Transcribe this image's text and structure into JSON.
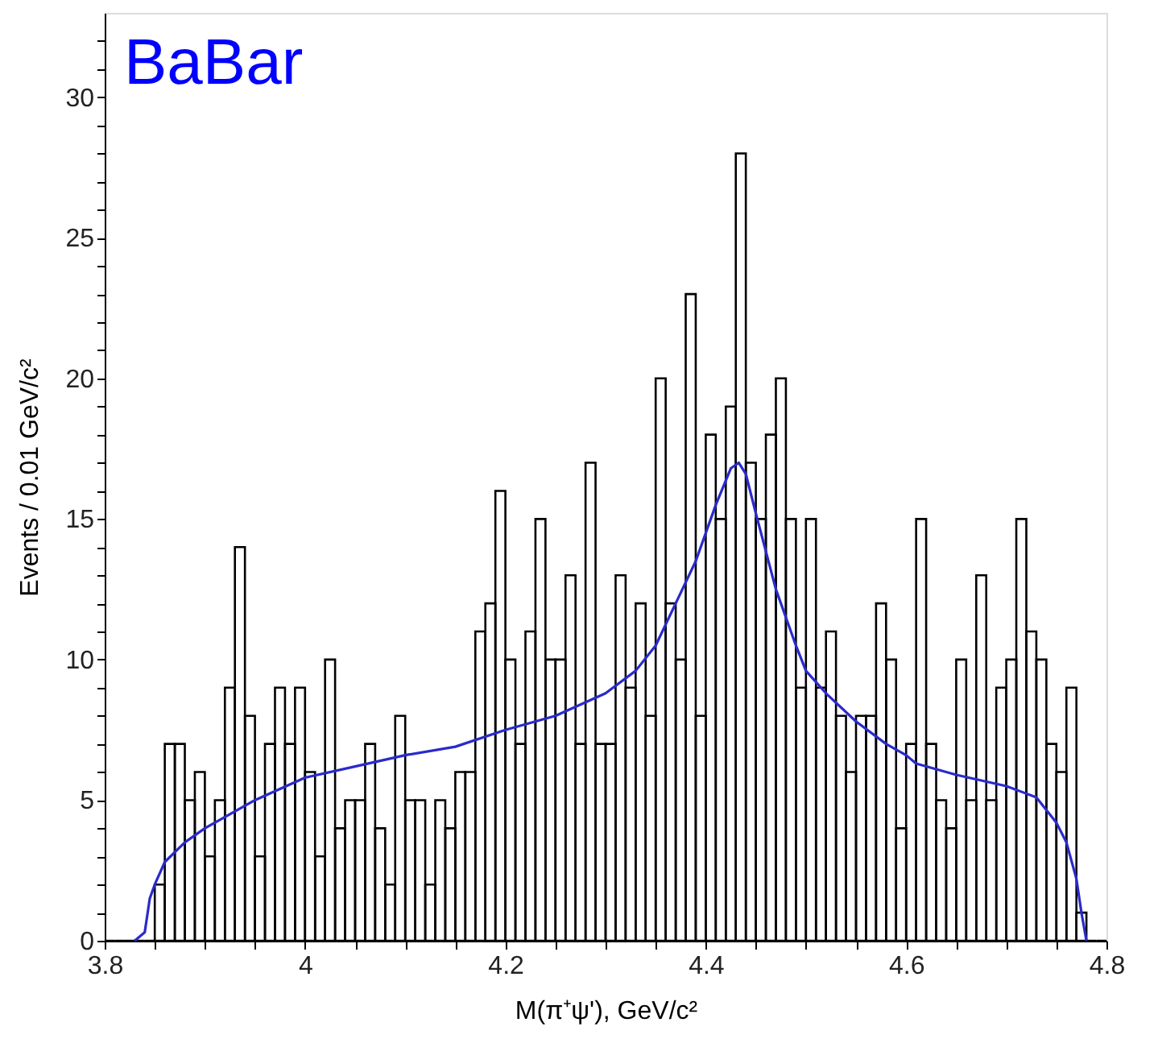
{
  "chart_data": {
    "type": "histogram",
    "xlabel": "M(π⁺ψ'), GeV/c²",
    "ylabel": "Events / 0.01 GeV/c²",
    "annotations": [
      "BaBar"
    ],
    "xlim": [
      3.8,
      4.8
    ],
    "ylim": [
      0,
      33
    ],
    "xticks": [
      3.8,
      {
        "value": 3.85,
        "label": null
      },
      {
        "value": 3.9,
        "label": null
      },
      {
        "value": 3.95,
        "label": null
      },
      4,
      {
        "value": 4.05,
        "label": null
      },
      {
        "value": 4.1,
        "label": null
      },
      {
        "value": 4.15,
        "label": null
      },
      4.2,
      {
        "value": 4.25,
        "label": null
      },
      {
        "value": 4.3,
        "label": null
      },
      {
        "value": 4.35,
        "label": null
      },
      4.4,
      {
        "value": 4.45,
        "label": null
      },
      {
        "value": 4.5,
        "label": null
      },
      {
        "value": 4.55,
        "label": null
      },
      4.6,
      {
        "value": 4.65,
        "label": null
      },
      {
        "value": 4.7,
        "label": null
      },
      {
        "value": 4.75,
        "label": null
      },
      4.8
    ],
    "yticks": [
      0,
      {
        "value": 1,
        "label": null
      },
      {
        "value": 2,
        "label": null
      },
      {
        "value": 3,
        "label": null
      },
      {
        "value": 4,
        "label": null
      },
      5,
      {
        "value": 6,
        "label": null
      },
      {
        "value": 7,
        "label": null
      },
      {
        "value": 8,
        "label": null
      },
      {
        "value": 9,
        "label": null
      },
      10,
      {
        "value": 11,
        "label": null
      },
      {
        "value": 12,
        "label": null
      },
      {
        "value": 13,
        "label": null
      },
      {
        "value": 14,
        "label": null
      },
      15,
      {
        "value": 16,
        "label": null
      },
      {
        "value": 17,
        "label": null
      },
      {
        "value": 18,
        "label": null
      },
      {
        "value": 19,
        "label": null
      },
      20,
      {
        "value": 21,
        "label": null
      },
      {
        "value": 22,
        "label": null
      },
      {
        "value": 23,
        "label": null
      },
      {
        "value": 24,
        "label": null
      },
      25,
      {
        "value": 26,
        "label": null
      },
      {
        "value": 27,
        "label": null
      },
      {
        "value": 28,
        "label": null
      },
      {
        "value": 29,
        "label": null
      },
      30,
      {
        "value": 31,
        "label": null
      },
      {
        "value": 32,
        "label": null
      }
    ],
    "grid": false,
    "series": [
      {
        "type": "histogram",
        "color": "#000000",
        "bins": [
          3.8,
          3.81,
          3.82,
          3.83,
          3.84,
          3.85,
          3.86,
          3.87,
          3.88,
          3.89,
          3.9,
          3.91,
          3.92,
          3.93,
          3.94,
          3.95,
          3.96,
          3.97,
          3.98,
          3.99,
          4.0,
          4.01,
          4.02,
          4.03,
          4.04,
          4.05,
          4.06,
          4.07,
          4.08,
          4.09,
          4.1,
          4.11,
          4.12,
          4.13,
          4.14,
          4.15,
          4.16,
          4.17,
          4.18,
          4.19,
          4.2,
          4.21,
          4.22,
          4.23,
          4.24,
          4.25,
          4.26,
          4.27,
          4.28,
          4.29,
          4.3,
          4.31,
          4.32,
          4.33,
          4.34,
          4.35,
          4.36,
          4.37,
          4.38,
          4.39,
          4.4,
          4.41,
          4.42,
          4.43,
          4.44,
          4.45,
          4.46,
          4.47,
          4.48,
          4.49,
          4.5,
          4.51,
          4.52,
          4.53,
          4.54,
          4.55,
          4.56,
          4.57,
          4.58,
          4.59,
          4.6,
          4.61,
          4.62,
          4.63,
          4.64,
          4.65,
          4.66,
          4.67,
          4.68,
          4.69,
          4.7,
          4.71,
          4.72,
          4.73,
          4.74,
          4.75,
          4.76,
          4.77,
          4.78,
          4.79,
          4.8
        ],
        "values": [
          0,
          0,
          0,
          0,
          0,
          2,
          7,
          7,
          5,
          6,
          3,
          5,
          9,
          14,
          8,
          3,
          7,
          9,
          7,
          9,
          6,
          3,
          10,
          4,
          5,
          5,
          7,
          4,
          2,
          8,
          5,
          5,
          2,
          5,
          4,
          6,
          6,
          11,
          12,
          16,
          10,
          7,
          11,
          15,
          10,
          10,
          13,
          7,
          17,
          7,
          7,
          13,
          9,
          12,
          8,
          20,
          12,
          10,
          23,
          8,
          18,
          15,
          19,
          28,
          17,
          15,
          18,
          20,
          15,
          9,
          15,
          9,
          11,
          8,
          6,
          8,
          8,
          12,
          10,
          4,
          7,
          15,
          7,
          5,
          4,
          10,
          5,
          13,
          5,
          9,
          10,
          15,
          11,
          10,
          7,
          6,
          9,
          1,
          0,
          0
        ]
      },
      {
        "type": "line",
        "color": "#2a2acc",
        "x": [
          3.83,
          3.84,
          3.845,
          3.85,
          3.86,
          3.88,
          3.9,
          3.95,
          4.0,
          4.05,
          4.1,
          4.15,
          4.2,
          4.25,
          4.3,
          4.33,
          4.35,
          4.37,
          4.39,
          4.41,
          4.425,
          4.433,
          4.44,
          4.45,
          4.47,
          4.49,
          4.5,
          4.52,
          4.55,
          4.58,
          4.6,
          4.61,
          4.65,
          4.7,
          4.73,
          4.75,
          4.76,
          4.77,
          4.775,
          4.78
        ],
        "values": [
          0,
          0.3,
          1.5,
          2,
          2.8,
          3.5,
          4.0,
          5.0,
          5.8,
          6.2,
          6.6,
          6.9,
          7.5,
          8.0,
          8.8,
          9.6,
          10.5,
          12,
          13.5,
          15.5,
          16.8,
          17,
          16.6,
          15.2,
          12.5,
          10.5,
          9.6,
          8.8,
          7.8,
          7.0,
          6.6,
          6.3,
          5.9,
          5.5,
          5.1,
          4.2,
          3.5,
          2.2,
          1,
          0
        ]
      }
    ]
  }
}
